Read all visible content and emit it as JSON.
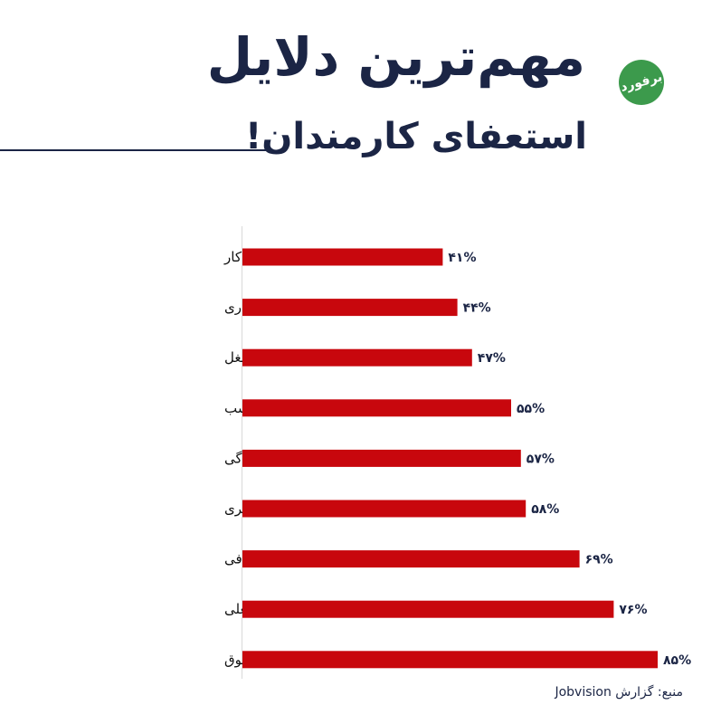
{
  "header": {
    "title_line1": "مهم‌ترین دلایل",
    "title_line2": "استعفای کارمندان!",
    "logo_text": "برفورد"
  },
  "colors": {
    "bar": "#c8070d",
    "title": "#1b2545",
    "logo": "#3c9a4c"
  },
  "chart_data": {
    "type": "bar",
    "orientation": "horizontal",
    "title": "مهم‌ترین دلایل استعفای کارمندان!",
    "categories": [
      "نبود انعطاف در ساعت کار",
      "عدم احساس تاثیرگذاری",
      "عدم تناسب با شغل",
      "مدیریت نامناسب",
      "نبود تعادل زندگی",
      "نبود یادگیری",
      "مزایای ناکافی",
      "ارتقا شغلی",
      "حقوق"
    ],
    "values": [
      41,
      44,
      47,
      55,
      57,
      58,
      69,
      76,
      85
    ],
    "value_labels": [
      "۴۱%",
      "۴۴%",
      "۴۷%",
      "۵۵%",
      "۵۷%",
      "۵۸%",
      "۶۹%",
      "۷۶%",
      "۸۵%"
    ],
    "xlim": [
      0,
      100
    ],
    "grid": false,
    "legend": "none"
  },
  "footer": {
    "source": "منبع: گزارش Jobvision"
  }
}
